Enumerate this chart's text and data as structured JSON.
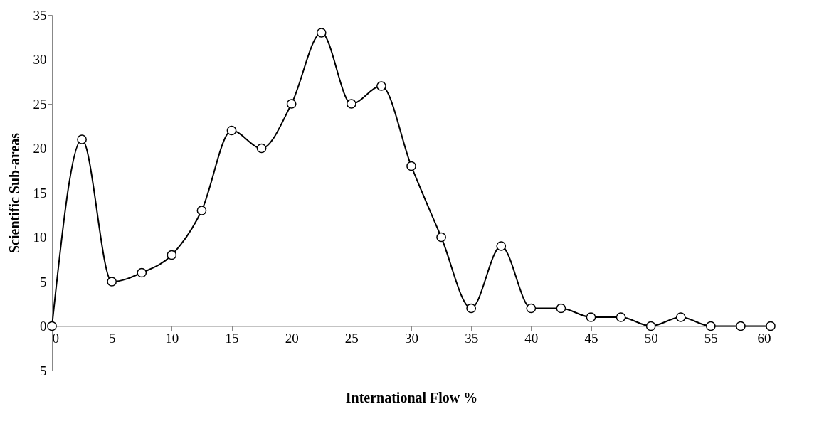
{
  "chart_data": {
    "type": "line",
    "xlabel": "International Flow %",
    "ylabel": "Scientific Sub-areas",
    "x": [
      0,
      2.5,
      5,
      7.5,
      10,
      12.5,
      15,
      17.5,
      20,
      22.5,
      25,
      27.5,
      30,
      32.5,
      35,
      37.5,
      40,
      42.5,
      45,
      47.5,
      50,
      52.5,
      55,
      57.5,
      60
    ],
    "series": [
      {
        "color": "#000000",
        "values": [
          0,
          21,
          5,
          6,
          8,
          13,
          22,
          20,
          25,
          33,
          25,
          27,
          18,
          10,
          2,
          9,
          2,
          2,
          1,
          1,
          0,
          1,
          0,
          0,
          0
        ]
      }
    ],
    "xlim": [
      0,
      60
    ],
    "xticks": [
      0,
      5,
      10,
      15,
      20,
      25,
      30,
      35,
      40,
      45,
      50,
      55,
      60
    ],
    "ylim": [
      -5,
      35
    ],
    "yticks": [
      -5,
      0,
      5,
      10,
      15,
      20,
      25,
      30,
      35
    ],
    "grid": false,
    "marker": "circle",
    "line_style": "solid"
  }
}
